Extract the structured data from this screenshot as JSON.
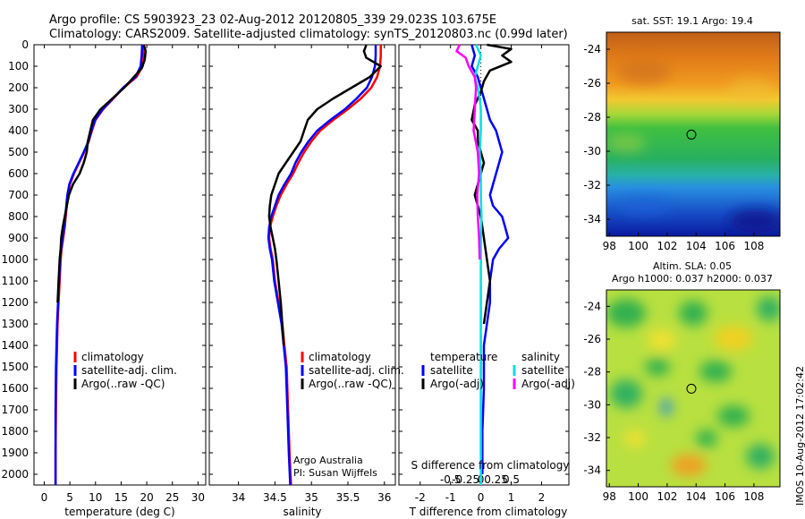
{
  "title_line1": "Argo profile: CS 5903923_23 02-Aug-2012 20120805_339 29.023S 103.675E",
  "title_line2": "Climatology: CARS2009. Satellite-adjusted climatology: synTS_20120803.nc (0.99d later)",
  "side_stamp": "IMOS 10-Aug-2012 17:02:42",
  "colors": {
    "climatology": "#ff0000",
    "satellite": "#0000ff",
    "argo": "#000000",
    "sal_satellite": "#00e0e0",
    "sal_argo": "#ff00ff"
  },
  "depth_axis": {
    "ticks": [
      0,
      100,
      200,
      300,
      400,
      500,
      600,
      700,
      800,
      900,
      1000,
      1100,
      1200,
      1300,
      1400,
      1500,
      1600,
      1700,
      1800,
      1900,
      2000
    ],
    "ylim": [
      0,
      2050
    ]
  },
  "panels": {
    "temperature": {
      "xlabel": "temperature (deg C)",
      "xlim": [
        -2,
        31.5
      ],
      "xticks": [
        "0",
        "5",
        "10",
        "15",
        "20",
        "25",
        "30"
      ],
      "legend": [
        "climatology",
        "satellite-adj. clim.",
        "Argo(..raw -QC)"
      ]
    },
    "salinity": {
      "xlabel": "salinity",
      "xlim": [
        33.6,
        36.15
      ],
      "xticks": [
        "34",
        "34.5",
        "35",
        "35.5",
        "36"
      ],
      "legend": [
        "climatology",
        "satellite-adj. clim.",
        "Argo(..raw -QC)"
      ],
      "note1": "Argo Australia",
      "note2": "PI: Susan Wijffels"
    },
    "difference": {
      "xlabel": "T difference from climatology",
      "s_label": "S difference from climatology",
      "xlim": [
        -2.7,
        2.9
      ],
      "xticks": [
        "-2",
        "-1",
        "0",
        "1",
        "2"
      ],
      "s_ticks": [
        "-0.5",
        "-0.25",
        "0",
        "0.25",
        "0.5"
      ],
      "legend_head_t": "temperature",
      "legend_head_s": "salinity",
      "legend_t": [
        "satellite",
        "Argo(-adj)"
      ],
      "legend_s": [
        "satellite",
        "Argo(-adj)"
      ]
    }
  },
  "maps": {
    "sst_title": "sat. SST: 19.1  Argo: 19.4",
    "sla_title1": "Altim. SLA: 0.05",
    "sla_title2": "Argo h1000: 0.037 h2000: 0.037",
    "yticks": [
      "-24",
      "-26",
      "-28",
      "-30",
      "-32",
      "-34"
    ],
    "xticks": [
      "98",
      "100",
      "102",
      "104",
      "106",
      "108"
    ],
    "float_lon": 103.675,
    "float_lat": -29.023
  },
  "chart_data": [
    {
      "type": "line",
      "title": "",
      "xlabel": "temperature (deg C)",
      "ylabel": "",
      "xlim": [
        -2,
        31.5
      ],
      "ylim": [
        0,
        2050
      ],
      "series": [
        {
          "name": "climatology",
          "x": [
            19.5,
            19.4,
            19.2,
            18.0,
            15.5,
            13.5,
            11.5,
            10.0,
            9.3,
            8.7,
            7.8,
            6.8,
            5.8,
            5.0,
            4.6,
            4.4,
            4.2,
            4.0,
            3.7,
            3.4,
            3.2,
            3.0,
            2.8,
            2.6,
            2.5,
            2.4,
            2.3,
            2.2,
            2.2
          ],
          "y": [
            0,
            50,
            100,
            150,
            200,
            250,
            300,
            350,
            400,
            450,
            500,
            550,
            600,
            650,
            700,
            750,
            800,
            850,
            900,
            950,
            1000,
            1100,
            1200,
            1300,
            1400,
            1500,
            1700,
            1900,
            2050
          ]
        },
        {
          "name": "satellite-adj. clim.",
          "x": [
            19.1,
            19.0,
            18.8,
            17.8,
            15.4,
            13.4,
            11.4,
            9.9,
            9.2,
            8.6,
            7.7,
            6.7,
            5.7,
            4.9,
            4.5,
            4.3,
            4.1,
            3.9,
            3.6,
            3.3,
            3.1,
            2.9,
            2.7,
            2.5,
            2.4,
            2.3,
            2.2,
            2.2,
            2.2
          ],
          "y": [
            0,
            50,
            100,
            150,
            200,
            250,
            300,
            350,
            400,
            450,
            500,
            550,
            600,
            650,
            700,
            750,
            800,
            850,
            900,
            950,
            1000,
            1100,
            1200,
            1300,
            1400,
            1500,
            1700,
            1900,
            2050
          ]
        },
        {
          "name": "Argo",
          "x": [
            19.4,
            19.8,
            19.6,
            19.0,
            17.5,
            15.6,
            13.3,
            11.0,
            9.5,
            9.0,
            8.5,
            8.3,
            7.7,
            6.9,
            5.6,
            4.8,
            4.4,
            4.0,
            3.6,
            3.3,
            3.2,
            3.0,
            2.8,
            2.6
          ],
          "y": [
            2,
            30,
            70,
            110,
            150,
            200,
            250,
            300,
            350,
            400,
            450,
            500,
            550,
            600,
            650,
            700,
            750,
            800,
            850,
            900,
            950,
            1000,
            1100,
            1200
          ]
        }
      ]
    },
    {
      "type": "line",
      "title": "",
      "xlabel": "salinity",
      "ylabel": "",
      "xlim": [
        33.6,
        36.15
      ],
      "ylim": [
        0,
        2050
      ],
      "series": [
        {
          "name": "climatology",
          "x": [
            35.95,
            35.95,
            35.94,
            35.9,
            35.82,
            35.68,
            35.5,
            35.3,
            35.12,
            35.0,
            34.9,
            34.82,
            34.75,
            34.66,
            34.58,
            34.52,
            34.47,
            34.43,
            34.42,
            34.44,
            34.47,
            34.5,
            34.55,
            34.6,
            34.63,
            34.66,
            34.68,
            34.7,
            34.72
          ],
          "y": [
            0,
            50,
            100,
            150,
            200,
            250,
            300,
            350,
            400,
            450,
            500,
            550,
            600,
            650,
            700,
            750,
            800,
            850,
            900,
            950,
            1000,
            1100,
            1200,
            1300,
            1400,
            1500,
            1700,
            1900,
            2050
          ]
        },
        {
          "name": "satellite-adj. clim.",
          "x": [
            35.88,
            35.88,
            35.87,
            35.83,
            35.76,
            35.62,
            35.46,
            35.26,
            35.08,
            34.96,
            34.86,
            34.78,
            34.72,
            34.63,
            34.55,
            34.5,
            34.45,
            34.42,
            34.41,
            34.43,
            34.46,
            34.49,
            34.54,
            34.59,
            34.62,
            34.65,
            34.67,
            34.69,
            34.71
          ],
          "y": [
            0,
            50,
            100,
            150,
            200,
            250,
            300,
            350,
            400,
            450,
            500,
            550,
            600,
            650,
            700,
            750,
            800,
            850,
            900,
            950,
            1000,
            1100,
            1200,
            1300,
            1400,
            1500,
            1700,
            1900,
            2050
          ]
        },
        {
          "name": "Argo",
          "x": [
            35.75,
            35.72,
            35.75,
            35.95,
            35.8,
            35.55,
            35.3,
            35.08,
            34.95,
            34.9,
            34.85,
            34.75,
            34.65,
            34.55,
            34.5,
            34.45,
            34.43,
            34.42,
            34.44,
            34.47,
            34.5,
            34.52,
            34.55,
            34.58,
            34.6,
            34.62
          ],
          "y": [
            2,
            30,
            60,
            100,
            150,
            200,
            250,
            300,
            350,
            400,
            450,
            500,
            550,
            600,
            650,
            700,
            750,
            800,
            850,
            900,
            950,
            1000,
            1100,
            1200,
            1300,
            1400
          ]
        }
      ]
    },
    {
      "type": "line",
      "title": "",
      "xlabel": "T difference from climatology",
      "ylabel": "",
      "xlim": [
        -2.7,
        2.9
      ],
      "ylim": [
        0,
        2050
      ],
      "series": [
        {
          "name": "temperature satellite",
          "x": [
            -0.3,
            -0.2,
            -0.3,
            -0.1,
            0,
            0.1,
            0.2,
            0.3,
            0.5,
            0.6,
            0.7,
            0.6,
            0.5,
            0.4,
            0.3,
            0.4,
            0.7,
            0.8,
            0.9,
            0.6,
            0.4,
            0.3,
            0.3,
            0.2,
            0.1,
            0.1,
            0.05,
            0.05
          ],
          "y": [
            0,
            50,
            100,
            150,
            200,
            250,
            300,
            350,
            400,
            450,
            500,
            550,
            600,
            650,
            700,
            750,
            800,
            850,
            900,
            950,
            1000,
            1100,
            1200,
            1300,
            1400,
            1600,
            1800,
            2000
          ]
        },
        {
          "name": "temperature Argo(-adj)",
          "x": [
            0.2,
            1.0,
            0.7,
            1.0,
            0.3,
            0.1,
            0.0,
            -0.2,
            -0.3,
            -0.1,
            -0.1,
            0.0,
            0.1,
            0.0,
            -0.1,
            -0.2,
            0.0,
            0.1,
            0.2,
            0.3,
            0.2,
            0.1
          ],
          "y": [
            0,
            20,
            50,
            80,
            120,
            170,
            220,
            280,
            350,
            400,
            450,
            500,
            550,
            600,
            650,
            700,
            800,
            900,
            1000,
            1100,
            1200,
            1300
          ]
        },
        {
          "name": "salinity satellite",
          "x": [
            -0.08,
            0.0,
            -0.05,
            -0.1,
            -0.05,
            -0.02,
            0.0,
            0.0,
            -0.02,
            0.0,
            0.0,
            0.01,
            0.0,
            0.0,
            0.0,
            0.0,
            0.0,
            0.0,
            0.0,
            0.0
          ],
          "y": [
            0,
            50,
            100,
            150,
            200,
            250,
            300,
            400,
            500,
            600,
            700,
            800,
            900,
            1000,
            1200,
            1400,
            1600,
            1800,
            1900,
            2050
          ]
        },
        {
          "name": "salinity Argo(-adj)",
          "x": [
            -0.35,
            -0.4,
            -0.25,
            -0.2,
            -0.1,
            -0.08,
            -0.1,
            -0.12,
            -0.05,
            -0.03,
            -0.06,
            -0.05,
            -0.03,
            -0.02
          ],
          "y": [
            0,
            30,
            60,
            100,
            150,
            200,
            300,
            400,
            500,
            600,
            700,
            800,
            900,
            1000
          ]
        }
      ]
    }
  ]
}
